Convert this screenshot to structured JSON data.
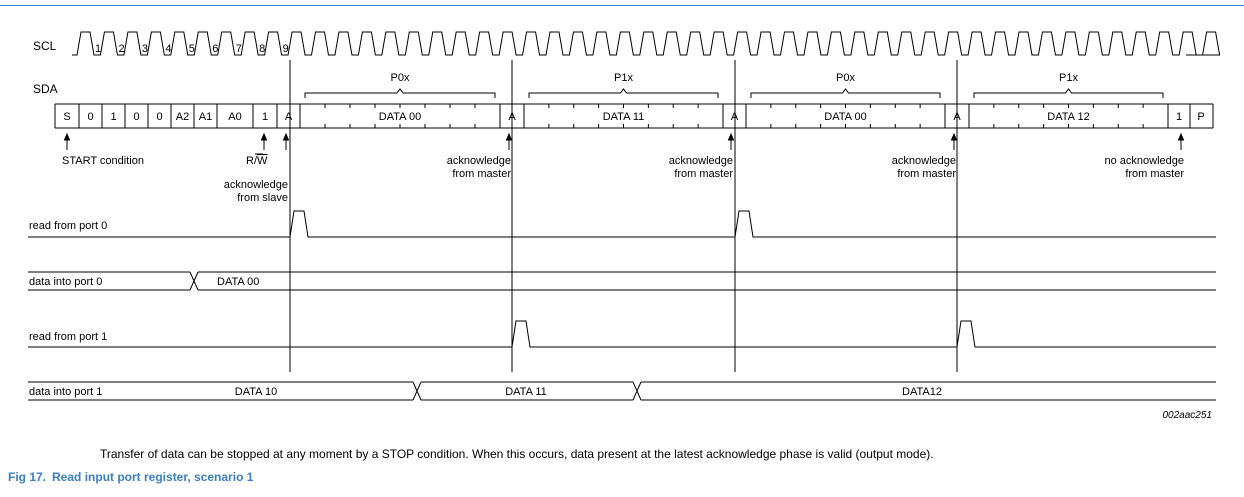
{
  "signals": {
    "scl": "SCL",
    "sda": "SDA",
    "read_port0": "read from port 0",
    "data_port0": "data into port 0",
    "read_port1": "read from port 1",
    "data_port1": "data into port 1"
  },
  "scl_numbers": [
    "1",
    "2",
    "3",
    "4",
    "5",
    "6",
    "7",
    "8",
    "9"
  ],
  "address_cells": [
    "S",
    "0",
    "1",
    "0",
    "0",
    "A2",
    "A1",
    "A0",
    "1",
    "A"
  ],
  "data_bytes": [
    {
      "label": "DATA 00",
      "brace": "P0x",
      "ack": "A"
    },
    {
      "label": "DATA 11",
      "brace": "P1x",
      "ack": "A"
    },
    {
      "label": "DATA 00",
      "brace": "P0x",
      "ack": "A"
    },
    {
      "label": "DATA 12",
      "brace": "P1x",
      "ack": "1"
    }
  ],
  "stop": "P",
  "annotations": {
    "start": "START condition",
    "rw": "R/W",
    "ack_slave_1": "acknowledge",
    "ack_slave_2": "from slave",
    "ack_master_1": "acknowledge",
    "ack_master_2": "from master",
    "no_ack_1": "no acknowledge",
    "no_ack_2": "from master"
  },
  "port_values": {
    "port0": [
      "DATA 00"
    ],
    "port1": [
      "DATA 10",
      "DATA 11",
      "DATA12"
    ]
  },
  "figure_id": "002aac251",
  "note": "Transfer of data can be stopped at any moment by a STOP condition. When this occurs, data present at the latest acknowledge phase is valid (output mode).",
  "caption": {
    "number": "Fig 17.",
    "title": "Read input port register, scenario 1"
  },
  "colors": {
    "accent": "#3a7ec3",
    "ink": "#000000"
  }
}
